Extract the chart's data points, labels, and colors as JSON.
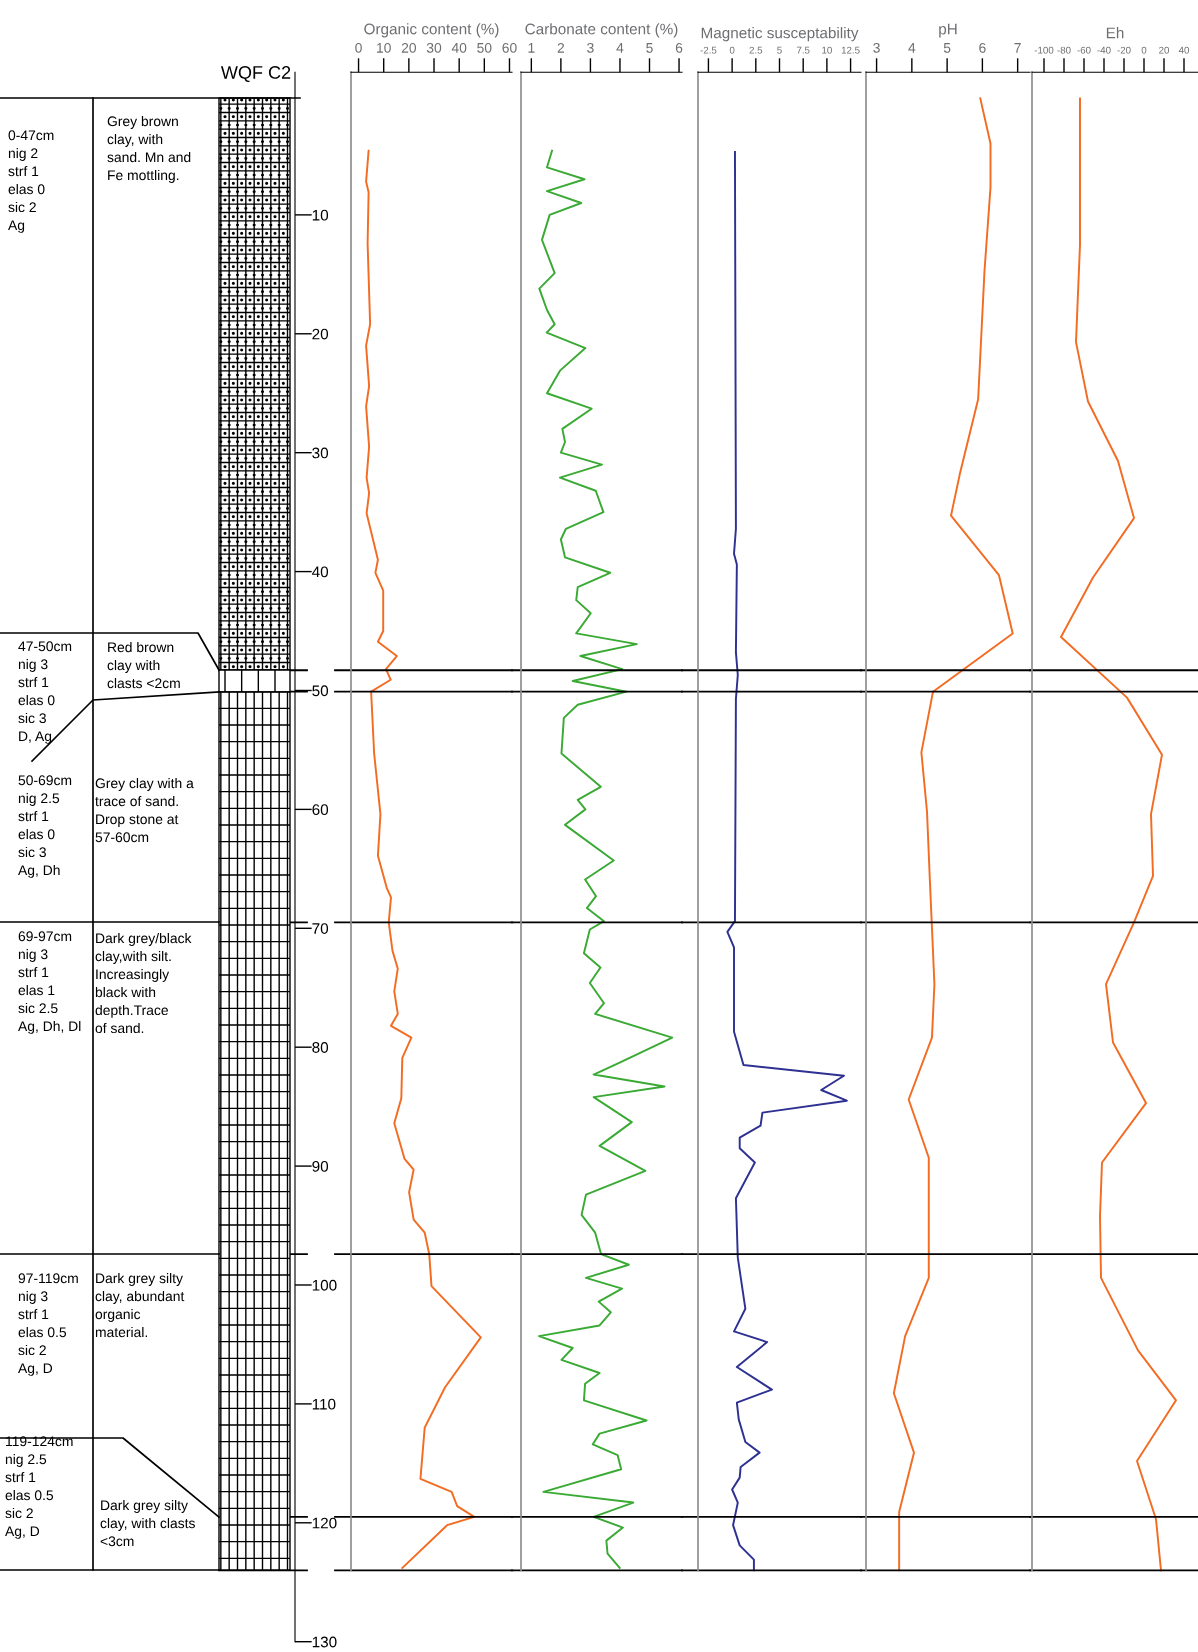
{
  "chart_data": [
    {
      "type": "other",
      "title": "WQF C2",
      "annotations": [
        "0-47cm\nnig 2\nstrf 1\nelas 0\nsic 2\nAg",
        "Grey brown\nclay, with\nsand. Mn and\nFe mottling.",
        "47-50cm\nnig 3\nstrf 1\nelas 0\nsic 3\nD, Ag",
        "Red brown\nclay with\nclasts <2cm",
        "50-69cm\nnig 2.5\nstrf 1\nelas 0\nsic 3\nAg, Dh",
        "Grey clay with a\ntrace of sand.\nDrop stone at\n57-60cm",
        "69-97cm\nnig 3\nstrf 1\nelas 1\nsic 2.5\nAg, Dh, Dl",
        "Dark grey/black\nclay,with silt.\nIncreasingly\nblack with\ndepth.Trace\nof sand.",
        "97-119cm\nnig 3\nstrf 1\nelas 0.5\nsic 2\nAg, D",
        "Dark grey silty\nclay, abundant\norganic\nmaterial.",
        "119-124cm\nnig 2.5\nstrf 1\nelas 0.5\nsic 2\nAg, D",
        "Dark grey silty\nclay, with clasts\n<3cm"
      ]
    },
    {
      "type": "line",
      "orientation": "horizontal",
      "xlabel": "Organic content (%)",
      "xlim": [
        -3,
        61
      ],
      "xticks": [
        0,
        10,
        20,
        30,
        40,
        50,
        60
      ],
      "ylim": [
        130,
        -2
      ],
      "yticks": [
        10,
        20,
        30,
        40,
        50,
        60,
        70,
        80,
        90,
        100,
        110,
        120,
        130
      ],
      "ref_lines": [
        {
          "axis": "y",
          "value": 48.3,
          "color": "#000000"
        },
        {
          "axis": "y",
          "value": 50.1,
          "color": "#000000"
        },
        {
          "axis": "y",
          "value": 69.5,
          "color": "#000000"
        },
        {
          "axis": "y",
          "value": 97.4,
          "color": "#000000"
        },
        {
          "axis": "y",
          "value": 119.5,
          "color": "#000000"
        },
        {
          "axis": "y",
          "value": 124,
          "color": "#000000"
        }
      ],
      "series": [
        {
          "color": "#f26c23",
          "x": [
            4.6,
            7.2,
            8.1,
            12.4,
            19.2,
            21,
            24.4,
            26.1,
            29.5,
            32.1,
            33.4,
            35.1,
            39,
            40.1,
            41.6,
            45,
            45.9,
            47.1,
            48.2,
            49.1,
            50.1,
            55.3,
            60.4,
            63.9,
            66.6,
            67.4,
            69.5,
            71.9,
            73.4,
            75.3,
            77.2,
            78.2,
            79.2,
            80.9,
            84.3,
            86.4,
            89.4,
            90.3,
            92.2,
            94.5,
            95.6,
            97.4,
            100.1,
            104.4,
            108.6,
            112,
            116.3,
            117.4,
            118.6,
            119.5,
            120.2,
            123.8
          ],
          "values": [
            4.0,
            3.0,
            4.0,
            3.6,
            4.6,
            3.0,
            4.2,
            3.0,
            4.2,
            3.2,
            4.2,
            3.2,
            7.7,
            6.7,
            9.8,
            9.8,
            7.7,
            15.2,
            10.9,
            12.8,
            5.0,
            6.2,
            8.7,
            7.7,
            11.2,
            12.9,
            12.0,
            13.5,
            15.6,
            14.2,
            15.6,
            12.9,
            21.0,
            17.4,
            17.0,
            14.2,
            18.3,
            21.9,
            20.1,
            21.9,
            26.3,
            28.1,
            29.0,
            48.6,
            34.4,
            26.3,
            24.6,
            37.0,
            39.2,
            46.0,
            35.2,
            17.4
          ]
        }
      ]
    },
    {
      "type": "line",
      "orientation": "horizontal",
      "xlabel": "Carbonate content (%)",
      "xlim": [
        0.65,
        6.1
      ],
      "xticks": [
        1,
        2,
        3,
        4,
        5,
        6
      ],
      "ylim": [
        130,
        -2
      ],
      "yticks": [
        10,
        20,
        30,
        40,
        50,
        60,
        70,
        80,
        90,
        100,
        110,
        120,
        130
      ],
      "tick_labels": "x",
      "ref_lines": [
        {
          "axis": "y",
          "value": 48.3,
          "color": "#000000"
        },
        {
          "axis": "y",
          "value": 50.1,
          "color": "#000000"
        },
        {
          "axis": "y",
          "value": 69.5,
          "color": "#000000"
        },
        {
          "axis": "y",
          "value": 97.4,
          "color": "#000000"
        },
        {
          "axis": "y",
          "value": 119.5,
          "color": "#000000"
        },
        {
          "axis": "y",
          "value": 124,
          "color": "#000000"
        }
      ],
      "series": [
        {
          "color": "#3aaa35",
          "x": [
            4.6,
            6.0,
            7.0,
            8.0,
            9.0,
            10.0,
            12.1,
            14.9,
            16.2,
            18.0,
            19.2,
            19.9,
            21.2,
            23.1,
            25.0,
            26.3,
            28.0,
            29.1,
            30.0,
            31.0,
            32.1,
            33.2,
            35.0,
            36.4,
            37.3,
            38.8,
            40.1,
            41.3,
            42.4,
            43.5,
            45.2,
            46.1,
            47.1,
            48.2,
            49.2,
            50.1,
            51.2,
            52.3,
            55.3,
            58.1,
            59.2,
            60.0,
            61.3,
            64.3,
            65.9,
            67.3,
            68.3,
            69.4,
            70.1,
            72.1,
            73.3,
            74.6,
            76.3,
            77.2,
            79.2,
            81.3,
            82.3,
            83.3,
            84.2,
            86.3,
            88.3,
            90.4,
            92.4,
            94.1,
            95.6,
            97.4,
            98.3,
            99.4,
            100.3,
            101.4,
            102.3,
            103.4,
            104.3,
            105.3,
            106.3,
            107.4,
            108.3,
            109.7,
            111.4,
            112.5,
            113.4,
            114.3,
            115.5,
            117.4,
            118.3,
            119.5,
            120.4,
            121.5,
            122.6,
            123.8
          ],
          "values": [
            1.7,
            1.53,
            2.8,
            1.53,
            2.69,
            1.62,
            1.36,
            1.79,
            1.27,
            1.53,
            1.79,
            1.52,
            2.83,
            1.97,
            1.53,
            3.04,
            2.05,
            2.14,
            2.0,
            3.39,
            1.97,
            3.18,
            3.44,
            2.17,
            2.0,
            2.14,
            3.67,
            2.57,
            2.52,
            3.01,
            2.52,
            4.57,
            2.66,
            4.08,
            2.4,
            4.22,
            2.57,
            2.1,
            2.02,
            3.35,
            2.57,
            2.83,
            2.14,
            3.79,
            2.82,
            3.19,
            2.88,
            3.46,
            2.98,
            2.78,
            3.34,
            2.98,
            3.46,
            3.16,
            5.77,
            3.99,
            3.11,
            5.51,
            3.11,
            4.4,
            3.31,
            4.86,
            2.85,
            2.7,
            3.16,
            3.36,
            4.3,
            2.85,
            4.07,
            3.28,
            3.69,
            3.31,
            1.26,
            2.4,
            2.02,
            3.31,
            2.82,
            2.78,
            4.9,
            3.31,
            3.08,
            3.92,
            4.04,
            1.41,
            4.45,
            3.11,
            4.1,
            3.54,
            3.58,
            3.99
          ]
        }
      ]
    },
    {
      "type": "line",
      "orientation": "horizontal",
      "xlabel": "Magnetic susceptability",
      "xlim": [
        -3.6,
        13.6
      ],
      "xticks": [
        -2.5,
        0,
        2.5,
        5,
        7.5,
        10,
        12.5
      ],
      "ylim": [
        130,
        -2
      ],
      "yticks": [
        10,
        20,
        30,
        40,
        50,
        60,
        70,
        80,
        90,
        100,
        110,
        120,
        130
      ],
      "tick_labels": "x",
      "ref_lines": [
        {
          "axis": "y",
          "value": 48.3,
          "color": "#000000"
        },
        {
          "axis": "y",
          "value": 50.1,
          "color": "#000000"
        },
        {
          "axis": "y",
          "value": 69.5,
          "color": "#000000"
        },
        {
          "axis": "y",
          "value": 97.4,
          "color": "#000000"
        },
        {
          "axis": "y",
          "value": 119.5,
          "color": "#000000"
        },
        {
          "axis": "y",
          "value": 124,
          "color": "#000000"
        }
      ],
      "series": [
        {
          "color": "#2e3192",
          "x": [
            4.7,
            36.4,
            38.5,
            39.4,
            46.8,
            48.7,
            50.7,
            69.4,
            70.3,
            71.6,
            78.7,
            81.5,
            82.4,
            83.6,
            84.5,
            85.5,
            86.6,
            87.6,
            88.5,
            89.7,
            92.7,
            97.7,
            102,
            103.9,
            104.8,
            106.9,
            108.8,
            109.9,
            111.3,
            113.2,
            114.1,
            115.3,
            116.2,
            117.2,
            118.3,
            120.2,
            121.9,
            123.1,
            124
          ],
          "values": [
            0.3,
            0.4,
            0.2,
            0.5,
            0.4,
            0.6,
            0.4,
            0.3,
            -0.5,
            0.2,
            0.2,
            1.2,
            11.8,
            9.4,
            12.1,
            3.2,
            3.0,
            0.8,
            0.8,
            2.4,
            0.4,
            0.6,
            1.4,
            0.2,
            3.7,
            0.5,
            4.2,
            0.5,
            0.7,
            1.4,
            2.9,
            0.9,
            0.8,
            0.0,
            0.6,
            0.1,
            0.8,
            2.3,
            2.3
          ]
        }
      ]
    },
    {
      "type": "line",
      "orientation": "horizontal",
      "xlabel": "pH",
      "xlim": [
        2.7,
        7.35
      ],
      "xticks": [
        3,
        4,
        5,
        6,
        7
      ],
      "ylim": [
        130,
        -2
      ],
      "yticks": [
        10,
        20,
        30,
        40,
        50,
        60,
        70,
        80,
        90,
        100,
        110,
        120,
        130
      ],
      "tick_labels": "x",
      "ref_lines": [
        {
          "axis": "y",
          "value": 48.3,
          "color": "#000000"
        },
        {
          "axis": "y",
          "value": 50.1,
          "color": "#000000"
        },
        {
          "axis": "y",
          "value": 69.5,
          "color": "#000000"
        },
        {
          "axis": "y",
          "value": 97.4,
          "color": "#000000"
        },
        {
          "axis": "y",
          "value": 119.5,
          "color": "#000000"
        },
        {
          "axis": "y",
          "value": 124,
          "color": "#000000"
        }
      ],
      "series": [
        {
          "color": "#f26c23",
          "x": [
            0.2,
            4.0,
            7.7,
            14.7,
            25.5,
            31.8,
            35.3,
            40.3,
            45.2,
            50.1,
            55.2,
            60.2,
            65.9,
            74.7,
            79.2,
            84.4,
            89.3,
            99.4,
            104.3,
            109.1,
            114.1,
            119.1,
            124
          ],
          "values": [
            5.94,
            6.23,
            6.23,
            6.06,
            5.88,
            5.36,
            5.11,
            6.47,
            6.86,
            4.6,
            4.27,
            4.43,
            4.51,
            4.64,
            4.57,
            3.91,
            4.48,
            4.48,
            3.81,
            3.49,
            4.06,
            3.64,
            3.64
          ]
        }
      ]
    },
    {
      "type": "line",
      "orientation": "horizontal",
      "xlabel": "Eh",
      "xlim": [
        -112,
        54
      ],
      "xticks": [
        -100,
        -80,
        -60,
        -40,
        -20,
        0,
        20,
        40
      ],
      "ylim": [
        130,
        -2
      ],
      "yticks": [
        10,
        20,
        30,
        40,
        50,
        60,
        70,
        80,
        90,
        100,
        110,
        120,
        130
      ],
      "tick_labels": "x",
      "ref_lines": [
        {
          "axis": "y",
          "value": 48.3,
          "color": "#000000"
        },
        {
          "axis": "y",
          "value": 50.1,
          "color": "#000000"
        },
        {
          "axis": "y",
          "value": 69.5,
          "color": "#000000"
        },
        {
          "axis": "y",
          "value": 97.4,
          "color": "#000000"
        },
        {
          "axis": "y",
          "value": 119.5,
          "color": "#000000"
        },
        {
          "axis": "y",
          "value": 124,
          "color": "#000000"
        }
      ],
      "series": [
        {
          "color": "#f26c23",
          "x": [
            0.2,
            12.5,
            20.7,
            25.7,
            30.7,
            35.5,
            40.5,
            45.5,
            50.6,
            55.4,
            60.4,
            65.6,
            69.5,
            74.7,
            79.6,
            84.7,
            89.7,
            94.2,
            99.4,
            105.5,
            109.7,
            114.8,
            119.7,
            124
          ],
          "values": [
            -64,
            -64,
            -68,
            -56,
            -26,
            -10,
            -51,
            -83,
            -17,
            18,
            7,
            9,
            -10,
            -38,
            -31,
            2,
            -42,
            -44,
            -43,
            -6,
            32,
            -7,
            12,
            17
          ]
        }
      ]
    }
  ]
}
